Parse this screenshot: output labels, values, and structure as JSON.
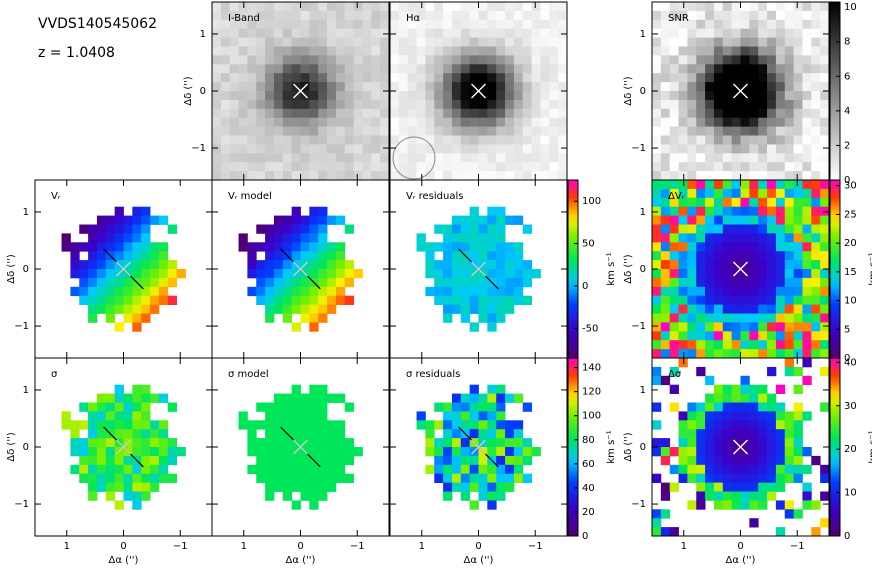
{
  "object": "VVDS140545062",
  "redshift": "z = 1.0408",
  "panels": [
    {
      "label": "I-Band"
    },
    {
      "label": "Hα"
    },
    {
      "label": "SNR"
    },
    {
      "label": "Vᵣ"
    },
    {
      "label": "Vᵣ model"
    },
    {
      "label": "Vᵣ residuals"
    },
    {
      "label": "ΔVᵣ"
    },
    {
      "label": "σ"
    },
    {
      "label": "σ model"
    },
    {
      "label": "σ residuals"
    },
    {
      "label": "Δσ"
    }
  ],
  "xlabel": "Δα ('')",
  "ylabel": "Δδ ('')",
  "xlim": [
    1.56,
    -1.56
  ],
  "ylim": [
    -1.56,
    1.56
  ],
  "xticks": [
    1,
    0,
    {
      "value": -1,
      "label": "−1"
    }
  ],
  "yticks": [
    1,
    0,
    {
      "value": -1,
      "label": "−1"
    }
  ],
  "colorbars": [
    {
      "lim": [
        0,
        10.3
      ],
      "ticks": [
        0,
        2,
        4,
        6,
        8,
        10
      ]
    },
    {
      "label": "km s⁻¹",
      "lim": [
        -85,
        125
      ],
      "ticks": [
        -50,
        0,
        50,
        100
      ]
    },
    {
      "label": "km s⁻¹",
      "lim": [
        0,
        31
      ],
      "ticks": [
        0,
        5,
        10,
        15,
        20,
        25,
        30
      ]
    },
    {
      "label": "km s⁻¹",
      "lim": [
        0,
        148
      ],
      "ticks": [
        0,
        20,
        40,
        60,
        80,
        100,
        120,
        140
      ]
    },
    {
      "label": "km s⁻¹",
      "lim": [
        0,
        41
      ],
      "ticks": [
        0,
        10,
        20,
        30,
        40
      ]
    }
  ]
}
